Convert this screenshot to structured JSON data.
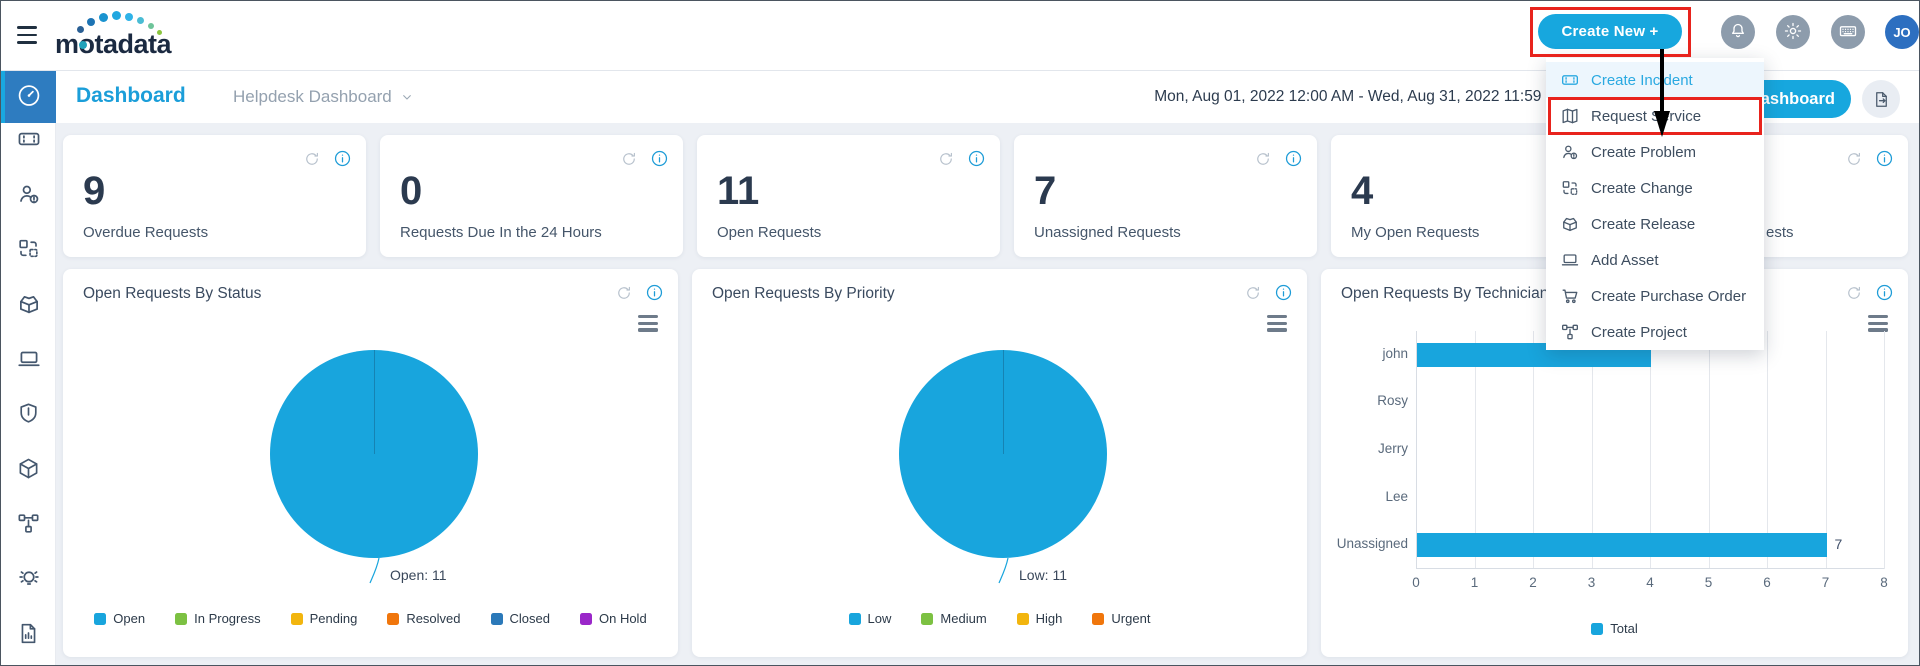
{
  "topbar": {
    "logo_text": "motadata",
    "create_new_label": "Create New +",
    "avatar_initials": "JO"
  },
  "header": {
    "page_title": "Dashboard",
    "dashboard_selector": "Helpdesk Dashboard",
    "date_range": "Mon, Aug 01, 2022 12:00 AM - Wed, Aug 31, 2022 11:59 PM",
    "manage_button_visible_text": "ashboard"
  },
  "sidebar": {
    "active_item": "dashboard",
    "items": [
      "dashboard",
      "incidents",
      "problems",
      "changes",
      "releases",
      "assets",
      "security",
      "cmdb",
      "projects",
      "knowledge",
      "reports"
    ]
  },
  "create_menu": {
    "items": [
      {
        "label": "Create Incident",
        "icon": "ticket-icon",
        "highlighted": true
      },
      {
        "label": "Request Service",
        "icon": "map-icon",
        "annotated": true
      },
      {
        "label": "Create Problem",
        "icon": "user-alert-icon"
      },
      {
        "label": "Create Change",
        "icon": "change-icon"
      },
      {
        "label": "Create Release",
        "icon": "release-box-icon"
      },
      {
        "label": "Add Asset",
        "icon": "laptop-icon"
      },
      {
        "label": "Create Purchase Order",
        "icon": "cart-icon"
      },
      {
        "label": "Create Project",
        "icon": "project-icon"
      }
    ]
  },
  "stat_cards": [
    {
      "value": "9",
      "label": "Overdue Requests"
    },
    {
      "value": "0",
      "label": "Requests Due In the 24 Hours"
    },
    {
      "value": "11",
      "label": "Open Requests"
    },
    {
      "value": "7",
      "label": "Unassigned Requests"
    },
    {
      "value": "4",
      "label": "My Open Requests"
    },
    {
      "value": "",
      "label": "ests"
    }
  ],
  "chart_data": [
    {
      "type": "pie",
      "title": "Open Requests By Status",
      "series": [
        {
          "name": "Open",
          "value": 11
        }
      ],
      "point_label": "Open: 11",
      "slice_color": "#18a5dd",
      "legend": [
        {
          "label": "Open",
          "color": "#18a5dd"
        },
        {
          "label": "In Progress",
          "color": "#7cc142"
        },
        {
          "label": "Pending",
          "color": "#f2b50e"
        },
        {
          "label": "Resolved",
          "color": "#f0760c"
        },
        {
          "label": "Closed",
          "color": "#2b79b9"
        },
        {
          "label": "On Hold",
          "color": "#9a27c9"
        }
      ]
    },
    {
      "type": "pie",
      "title": "Open Requests By Priority",
      "series": [
        {
          "name": "Low",
          "value": 11
        }
      ],
      "point_label": "Low: 11",
      "slice_color": "#18a5dd",
      "legend": [
        {
          "label": "Low",
          "color": "#18a5dd"
        },
        {
          "label": "Medium",
          "color": "#7cc142"
        },
        {
          "label": "High",
          "color": "#f2b50e"
        },
        {
          "label": "Urgent",
          "color": "#f0760c"
        }
      ]
    },
    {
      "type": "bar",
      "orientation": "horizontal",
      "title": "Open Requests By Technician",
      "categories": [
        "john",
        "Rosy",
        "Jerry",
        "Lee",
        "Unassigned"
      ],
      "values": [
        4,
        0,
        0,
        0,
        7
      ],
      "point_labels": [
        "",
        "",
        "",
        "",
        "7"
      ],
      "xlim": [
        0,
        8
      ],
      "ticks": [
        0,
        1,
        2,
        3,
        4,
        5,
        6,
        7,
        8
      ],
      "bar_color": "#18a5dd",
      "legend": [
        {
          "label": "Total",
          "color": "#18a5dd"
        }
      ]
    }
  ],
  "colors": {
    "accent_blue": "#18a5dd",
    "title_blue": "#1b9ed9",
    "annotation_red": "#e8231d",
    "avatar_blue": "#2d6fc0"
  }
}
